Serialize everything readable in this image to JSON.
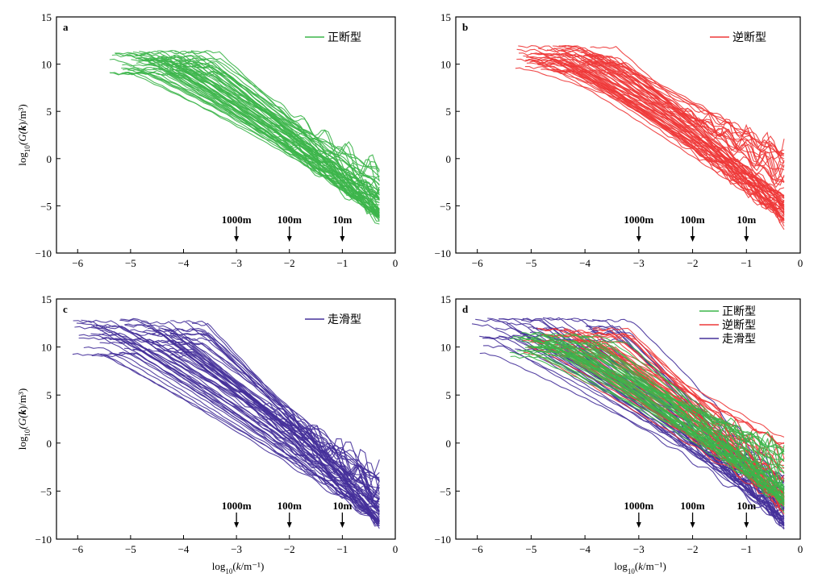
{
  "chart_data": [
    {
      "panel": "a",
      "type": "line",
      "xlabel": "",
      "ylabel": "log10(G(k)/m³)",
      "xlim": [
        -6.4,
        0
      ],
      "ylim": [
        -10,
        15
      ],
      "xticks": [
        "-6",
        "-5",
        "-4",
        "-3",
        "-2",
        "-1",
        "0"
      ],
      "yticks": [
        "15",
        "10",
        "5",
        "0",
        "-5",
        "-10"
      ],
      "legend_position": "top-right",
      "series": [
        {
          "name": "正断型",
          "color": "#3cb54a",
          "line_count": 60,
          "x_start_range": [
            -5.4,
            -3.8
          ],
          "x_end": -0.3,
          "y_at_start_range": [
            7.5,
            11.5
          ],
          "y_at_end_range": [
            -6.3,
            -0.5
          ]
        }
      ],
      "annotations": [
        {
          "text": "1000m",
          "x": -3
        },
        {
          "text": "100m",
          "x": -2
        },
        {
          "text": "10m",
          "x": -1
        }
      ]
    },
    {
      "panel": "b",
      "type": "line",
      "xlabel": "",
      "ylabel": "",
      "xlim": [
        -6.4,
        0
      ],
      "ylim": [
        -10,
        15
      ],
      "xticks": [
        "-6",
        "-5",
        "-4",
        "-3",
        "-2",
        "-1",
        "0"
      ],
      "yticks": [
        "15",
        "10",
        "5",
        "0",
        "-5",
        "-10"
      ],
      "legend_position": "top-right",
      "series": [
        {
          "name": "逆断型",
          "color": "#ee3838",
          "line_count": 60,
          "x_start_range": [
            -5.3,
            -3.8
          ],
          "x_end": -0.3,
          "y_at_start_range": [
            7.5,
            12
          ],
          "y_at_end_range": [
            -6.5,
            1.2
          ]
        }
      ],
      "annotations": [
        {
          "text": "1000m",
          "x": -3
        },
        {
          "text": "100m",
          "x": -2
        },
        {
          "text": "10m",
          "x": -1
        }
      ]
    },
    {
      "panel": "c",
      "type": "line",
      "xlabel": "log10(k/m⁻¹)",
      "ylabel": "log10(G(k)/m³)",
      "xlim": [
        -6.4,
        0
      ],
      "ylim": [
        -10,
        15
      ],
      "xticks": [
        "-6",
        "-5",
        "-4",
        "-3",
        "-2",
        "-1",
        "0"
      ],
      "yticks": [
        "15",
        "10",
        "5",
        "0",
        "-5",
        "-10"
      ],
      "legend_position": "top-right",
      "series": [
        {
          "name": "走滑型",
          "color": "#45309a",
          "line_count": 60,
          "x_start_range": [
            -6.1,
            -3.8
          ],
          "x_end": -0.3,
          "y_at_start_range": [
            7,
            13
          ],
          "y_at_end_range": [
            -8.5,
            -3.5
          ]
        }
      ],
      "annotations": [
        {
          "text": "1000m",
          "x": -3
        },
        {
          "text": "100m",
          "x": -2
        },
        {
          "text": "10m",
          "x": -1
        }
      ]
    },
    {
      "panel": "d",
      "type": "line",
      "xlabel": "log10(k/m⁻¹)",
      "ylabel": "",
      "xlim": [
        -6.4,
        0
      ],
      "ylim": [
        -10,
        15
      ],
      "xticks": [
        "-6",
        "-5",
        "-4",
        "-3",
        "-2",
        "-1",
        "0"
      ],
      "yticks": [
        "15",
        "10",
        "5",
        "0",
        "-5",
        "-10"
      ],
      "legend_position": "top-right",
      "series": [
        {
          "name": "走滑型",
          "color": "#45309a",
          "line_count": 40,
          "x_start_range": [
            -6.1,
            -3.8
          ],
          "x_end": -0.3,
          "y_at_start_range": [
            7,
            13
          ],
          "y_at_end_range": [
            -8.5,
            -3.5
          ]
        },
        {
          "name": "逆断型",
          "color": "#ee3838",
          "line_count": 40,
          "x_start_range": [
            -5.3,
            -3.8
          ],
          "x_end": -0.3,
          "y_at_start_range": [
            7.5,
            12
          ],
          "y_at_end_range": [
            -6.5,
            1.2
          ]
        },
        {
          "name": "正断型",
          "color": "#3cb54a",
          "line_count": 45,
          "x_start_range": [
            -5.4,
            -3.8
          ],
          "x_end": -0.3,
          "y_at_start_range": [
            7.5,
            11.5
          ],
          "y_at_end_range": [
            -6.3,
            -0.5
          ]
        }
      ],
      "legend_order": [
        "正断型",
        "逆断型",
        "走滑型"
      ],
      "annotations": [
        {
          "text": "1000m",
          "x": -3
        },
        {
          "text": "100m",
          "x": -2
        },
        {
          "text": "10m",
          "x": -1
        }
      ]
    }
  ]
}
